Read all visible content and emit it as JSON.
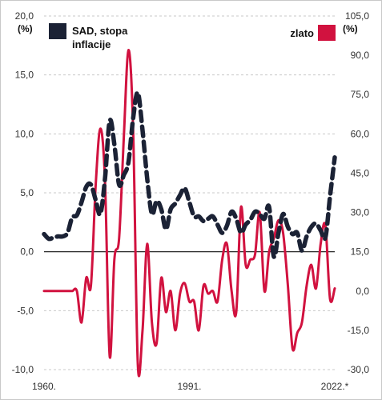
{
  "chart_data": {
    "type": "line",
    "left_axis": {
      "unit_label": "(%)",
      "ylim": [
        -10,
        20
      ],
      "ticks": [
        "20,0",
        "15,0",
        "10,0",
        "5,0",
        "0,0",
        "-5,0",
        "-10,0"
      ]
    },
    "right_axis": {
      "unit_label": "(%)",
      "ylim": [
        -30,
        105
      ],
      "ticks": [
        "105,0",
        "90,0",
        "75,0",
        "60,0",
        "45,0",
        "30,0",
        "15,0",
        "0,0",
        "-15,0",
        "-30,0"
      ]
    },
    "x_axis": {
      "xlim": [
        1960,
        2022
      ],
      "ticks": [
        "1960.",
        "1991.",
        "2022.*"
      ]
    },
    "grid": true,
    "zero_line": true,
    "legend": [
      {
        "label_line1": "SAD, stopa",
        "label_line2": "inflacije",
        "placement": "top-left"
      },
      {
        "label_line1": "zlato",
        "placement": "top-right"
      }
    ],
    "series": [
      {
        "name": "SAD, stopa inflacije",
        "axis": "left",
        "color": "#1b2235",
        "style": "dashed",
        "x": [
          1960,
          1961,
          1962,
          1963,
          1964,
          1965,
          1966,
          1967,
          1968,
          1969,
          1970,
          1971,
          1972,
          1973,
          1974,
          1975,
          1976,
          1977,
          1978,
          1979,
          1980,
          1981,
          1982,
          1983,
          1984,
          1985,
          1986,
          1987,
          1988,
          1989,
          1990,
          1991,
          1992,
          1993,
          1994,
          1995,
          1996,
          1997,
          1998,
          1999,
          2000,
          2001,
          2002,
          2003,
          2004,
          2005,
          2006,
          2007,
          2008,
          2009,
          2010,
          2011,
          2012,
          2013,
          2014,
          2015,
          2016,
          2017,
          2018,
          2019,
          2020,
          2021,
          2022
        ],
        "values": [
          1.5,
          1.1,
          1.2,
          1.3,
          1.3,
          1.6,
          2.9,
          3.1,
          4.2,
          5.5,
          5.7,
          4.4,
          3.2,
          6.2,
          11.1,
          9.1,
          5.7,
          6.5,
          7.6,
          11.3,
          13.5,
          10.3,
          6.2,
          3.2,
          4.3,
          3.6,
          1.9,
          3.6,
          4.1,
          4.8,
          5.4,
          4.2,
          3.0,
          3.0,
          2.6,
          2.8,
          3.0,
          2.3,
          1.6,
          2.2,
          3.4,
          2.8,
          1.6,
          2.3,
          2.7,
          3.4,
          3.2,
          2.8,
          3.8,
          -0.4,
          1.6,
          3.2,
          2.1,
          1.5,
          1.6,
          0.1,
          1.3,
          2.1,
          2.4,
          1.8,
          1.2,
          4.7,
          8.0
        ]
      },
      {
        "name": "zlato",
        "axis": "right",
        "color": "#d1123f",
        "style": "solid",
        "x": [
          1960,
          1961,
          1962,
          1963,
          1964,
          1965,
          1966,
          1967,
          1968,
          1969,
          1970,
          1971,
          1972,
          1973,
          1974,
          1975,
          1976,
          1977,
          1978,
          1979,
          1980,
          1981,
          1982,
          1983,
          1984,
          1985,
          1986,
          1987,
          1988,
          1989,
          1990,
          1991,
          1992,
          1993,
          1994,
          1995,
          1996,
          1997,
          1998,
          1999,
          2000,
          2001,
          2002,
          2003,
          2004,
          2005,
          2006,
          2007,
          2008,
          2009,
          2010,
          2011,
          2012,
          2013,
          2014,
          2015,
          2016,
          2017,
          2018,
          2019,
          2020,
          2021,
          2022
        ],
        "values": [
          0,
          0,
          0,
          0,
          0,
          0,
          0,
          0,
          -12,
          5,
          2,
          40,
          62,
          42,
          -25,
          12,
          20,
          58,
          92,
          62,
          -28,
          -15,
          18,
          -12,
          -20,
          5,
          -8,
          0,
          -15,
          -1,
          3,
          -4,
          -4,
          -15,
          2,
          -1,
          0,
          -4,
          12,
          18,
          0,
          -8,
          32,
          10,
          12,
          14,
          30,
          0,
          15,
          20,
          27,
          22,
          2,
          -22,
          -16,
          -12,
          2,
          10,
          1,
          18,
          25,
          -3,
          1
        ]
      }
    ]
  }
}
